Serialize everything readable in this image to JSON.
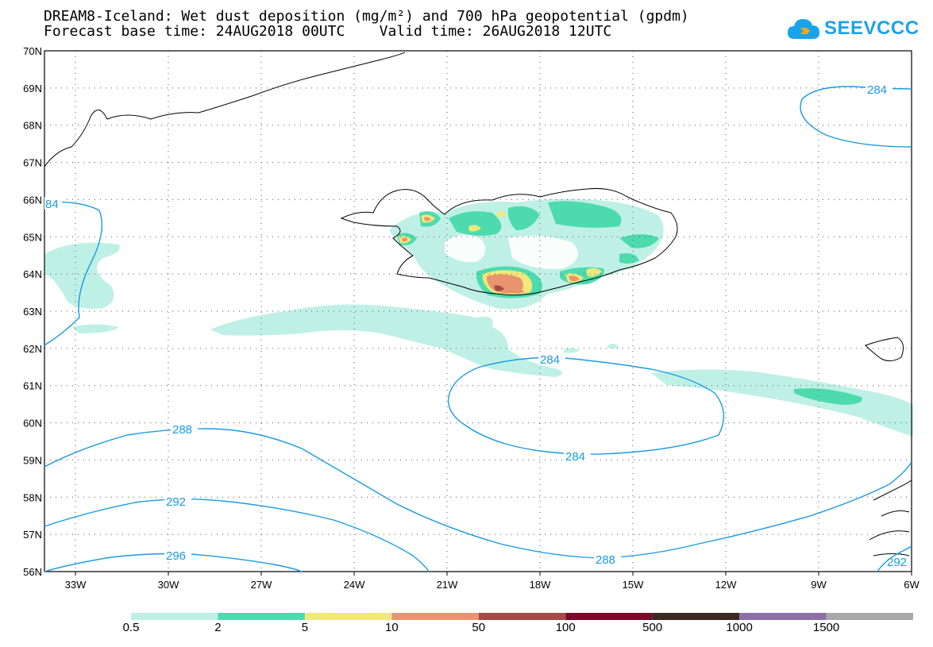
{
  "title": {
    "line1": "DREAM8-Iceland: Wet dust deposition (mg/m²) and 700 hPa geopotential (gpdm)",
    "line2": "Forecast base time: 24AUG2018 00UTC    Valid time: 26AUG2018 12UTC"
  },
  "logo": {
    "text": "SEEVCCC",
    "icon": "cloud-icon",
    "color": "#1aa3e8"
  },
  "map": {
    "lat_labels": [
      "70N",
      "69N",
      "68N",
      "67N",
      "66N",
      "65N",
      "64N",
      "63N",
      "62N",
      "61N",
      "60N",
      "59N",
      "58N",
      "57N",
      "56N"
    ],
    "lon_labels": [
      "33W",
      "30W",
      "27W",
      "24W",
      "21W",
      "18W",
      "15W",
      "12W",
      "9W",
      "6W"
    ],
    "lat_range": [
      56,
      70
    ],
    "lon_range": [
      -34,
      -6
    ],
    "grid": true,
    "contour_color": "#1a9be0",
    "contour_labels": {
      "c284_ne": "284",
      "c284_w": "84",
      "c284_center_top": "284",
      "c284_center_bottom": "284",
      "c288_left": "288",
      "c288_bottom": "288",
      "c292": "292",
      "c296": "296",
      "c29x_se": "292"
    }
  },
  "legend": {
    "colors": [
      "#bff0e6",
      "#4ddbae",
      "#f0e87a",
      "#e8956f",
      "#a54a45",
      "#7a0a2a",
      "#3a2a22",
      "#8c6fa5",
      "#a8a8a8"
    ],
    "labels": [
      "0.5",
      "2",
      "5",
      "10",
      "50",
      "100",
      "500",
      "1000",
      "1500"
    ]
  }
}
